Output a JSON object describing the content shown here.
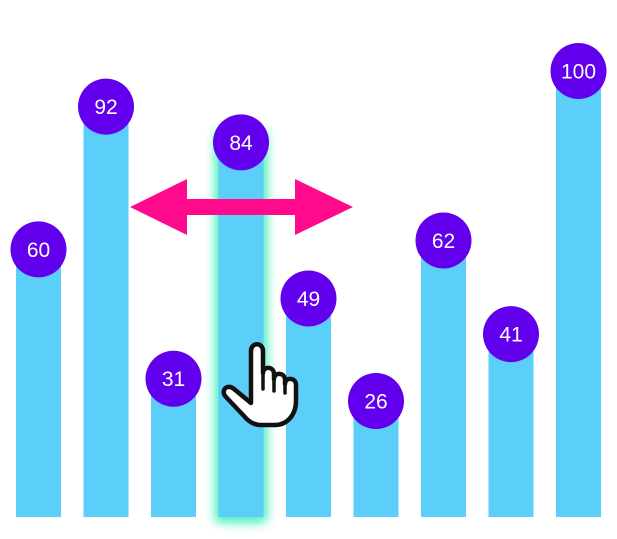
{
  "chart_data": {
    "type": "bar",
    "categories": [
      "",
      "",
      "",
      "",
      "",
      "",
      "",
      "",
      ""
    ],
    "values": [
      60,
      92,
      31,
      84,
      49,
      26,
      62,
      41,
      100
    ],
    "labels": [
      "60",
      "92",
      "31",
      "84",
      "49",
      "26",
      "62",
      "41",
      "100"
    ],
    "title": "",
    "xlabel": "",
    "ylabel": "",
    "ylim": [
      0,
      100
    ],
    "grid": false,
    "legend": "none",
    "colors": {
      "bar": "#5BCEFA",
      "label_circle": "#6200EE",
      "label_text": "#FFFFFF",
      "highlight_glow": "#44F0B8",
      "arrow": "#FF0A8C",
      "cursor_fill": "#FFFFFF",
      "cursor_stroke": "#111111"
    },
    "highlighted_index": 3,
    "drag_indicator": {
      "icon": "horizontal-double-arrow-icon",
      "target_index": 3
    },
    "cursor": {
      "icon": "hand-pointer-icon",
      "target_index": 3
    }
  }
}
